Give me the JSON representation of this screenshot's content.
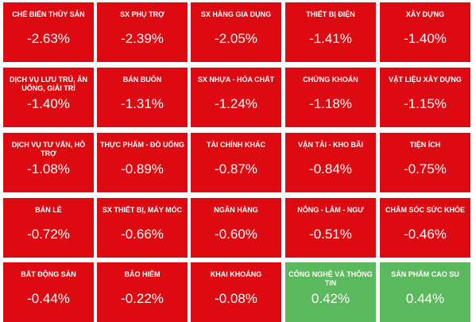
{
  "tiles": [
    {
      "name": "CHẾ BIẾN THỦY SẢN",
      "change": "-2.63%",
      "color": "#dd0a12"
    },
    {
      "name": "SX PHỤ TRỢ",
      "change": "-2.39%",
      "color": "#dd0a12"
    },
    {
      "name": "SX HÀNG GIA DỤNG",
      "change": "-2.05%",
      "color": "#dd0a12"
    },
    {
      "name": "THIẾT BỊ ĐIỆN",
      "change": "-1.41%",
      "color": "#dd0a12"
    },
    {
      "name": "XÂY DỰNG",
      "change": "-1.40%",
      "color": "#dd0a12"
    },
    {
      "name": "DỊCH VỤ LƯU TRÚ, ĂN UỐNG, GIẢI TRÍ",
      "change": "-1.40%",
      "color": "#dd0a12"
    },
    {
      "name": "BÁN BUÔN",
      "change": "-1.31%",
      "color": "#dd0a12"
    },
    {
      "name": "SX NHỰA - HÓA CHẤT",
      "change": "-1.24%",
      "color": "#dd0a12"
    },
    {
      "name": "CHỨNG KHOÁN",
      "change": "-1.18%",
      "color": "#dd0a12"
    },
    {
      "name": "VẬT LIỆU XÂY DỰNG",
      "change": "-1.15%",
      "color": "#dd0a12"
    },
    {
      "name": "DỊCH VỤ TƯ VẤN, HỖ TRỢ",
      "change": "-1.08%",
      "color": "#dd0a12"
    },
    {
      "name": "THỰC PHẨM - ĐỒ UỐNG",
      "change": "-0.89%",
      "color": "#dd0a12"
    },
    {
      "name": "TÀI CHÍNH KHÁC",
      "change": "-0.87%",
      "color": "#dd0a12"
    },
    {
      "name": "VẬN TẢI - KHO BÃI",
      "change": "-0.84%",
      "color": "#dd0a12"
    },
    {
      "name": "TIỆN ÍCH",
      "change": "-0.75%",
      "color": "#dd0a12"
    },
    {
      "name": "BÁN LẺ",
      "change": "-0.72%",
      "color": "#dd0a12"
    },
    {
      "name": "SX THIẾT BỊ, MÁY MÓC",
      "change": "-0.66%",
      "color": "#dd0a12"
    },
    {
      "name": "NGÂN HÀNG",
      "change": "-0.60%",
      "color": "#dd0a12"
    },
    {
      "name": "NÔNG - LÂM - NGƯ",
      "change": "-0.51%",
      "color": "#dd0a12"
    },
    {
      "name": "CHĂM SÓC SỨC KHỎE",
      "change": "-0.46%",
      "color": "#dd0a12"
    },
    {
      "name": "BẤT ĐỘNG SẢN",
      "change": "-0.44%",
      "color": "#dd0a12"
    },
    {
      "name": "BẢO HIỂM",
      "change": "-0.22%",
      "color": "#dd0a12"
    },
    {
      "name": "KHAI KHOÁNG",
      "change": "-0.08%",
      "color": "#dd0a12"
    },
    {
      "name": "CÔNG NGHỆ VÀ THÔNG TIN",
      "change": "0.42%",
      "color": "#5cb85c"
    },
    {
      "name": "SẢN PHẨM CAO SU",
      "change": "0.44%",
      "color": "#5cb85c"
    }
  ]
}
